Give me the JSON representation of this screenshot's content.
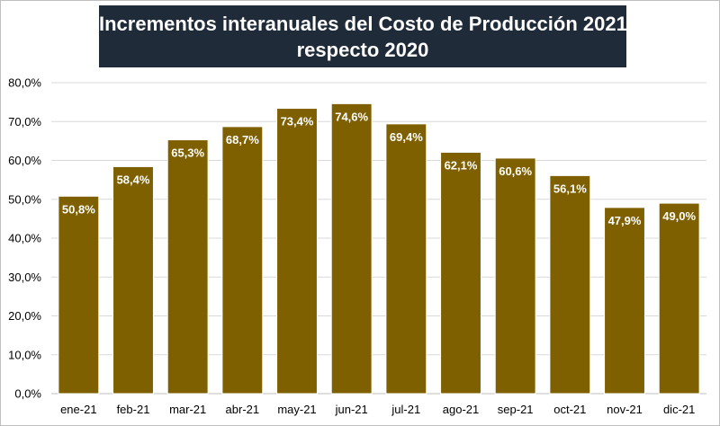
{
  "chart_data": {
    "type": "bar",
    "title_lines": [
      "Incrementos interanuales del Costo de Producción 2021",
      "respecto 2020"
    ],
    "categories": [
      "ene-21",
      "feb-21",
      "mar-21",
      "abr-21",
      "may-21",
      "jun-21",
      "jul-21",
      "ago-21",
      "sep-21",
      "oct-21",
      "nov-21",
      "dic-21"
    ],
    "values": [
      50.8,
      58.4,
      65.3,
      68.7,
      73.4,
      74.6,
      69.4,
      62.1,
      60.6,
      56.1,
      47.9,
      49.0
    ],
    "data_labels": [
      "50,8%",
      "58,4%",
      "65,3%",
      "68,7%",
      "73,4%",
      "74,6%",
      "69,4%",
      "62,1%",
      "60,6%",
      "56,1%",
      "47,9%",
      "49,0%"
    ],
    "y_ticks": [
      0,
      10,
      20,
      30,
      40,
      50,
      60,
      70,
      80
    ],
    "y_tick_labels": [
      "0,0%",
      "10,0%",
      "20,0%",
      "30,0%",
      "40,0%",
      "50,0%",
      "60,0%",
      "70,0%",
      "80,0%"
    ],
    "ylim": [
      0,
      80
    ],
    "grid": true,
    "bar_color": "#7f6000",
    "bar_edge_color": "#ffffff",
    "title_background": "#1f2b38"
  }
}
